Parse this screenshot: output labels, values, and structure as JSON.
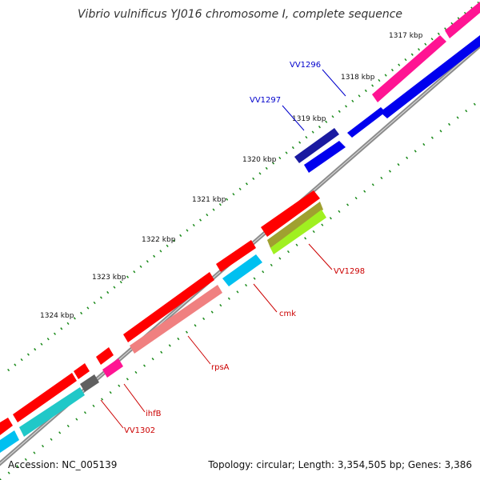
{
  "title": "Vibrio vulnificus YJ016 chromosome I, complete sequence",
  "footer": {
    "accession": "Accession: NC_005139",
    "summary": "Topology: circular; Length: 3,354,505 bp; Genes: 3,386"
  },
  "scale": {
    "ticks": [
      "1317 kbp",
      "1318 kbp",
      "1319 kbp",
      "1320 kbp",
      "1321 kbp",
      "1322 kbp",
      "1323 kbp",
      "1324 kbp"
    ]
  },
  "colors": {
    "backbone": "#8c8c8c",
    "red": "#ff0000",
    "light_red": "#f08080",
    "blue": "#0000ee",
    "navy": "#1a1aa0",
    "cyan": "#00c0f0",
    "teal": "#20c8c8",
    "magenta": "#ff1493",
    "olive": "#a0a030",
    "lime": "#a0f020",
    "gray": "#606060",
    "tick_green": "#1a8a1a",
    "label_red": "#cc0000",
    "label_blue": "#0000cc"
  },
  "gene_labels": {
    "vv1296": "VV1296",
    "vv1297": "VV1297",
    "vv1298": "VV1298",
    "cmk": "cmk",
    "rpsa": "rpsA",
    "ihfb": "ihfB",
    "vv1302": "VV1302"
  }
}
